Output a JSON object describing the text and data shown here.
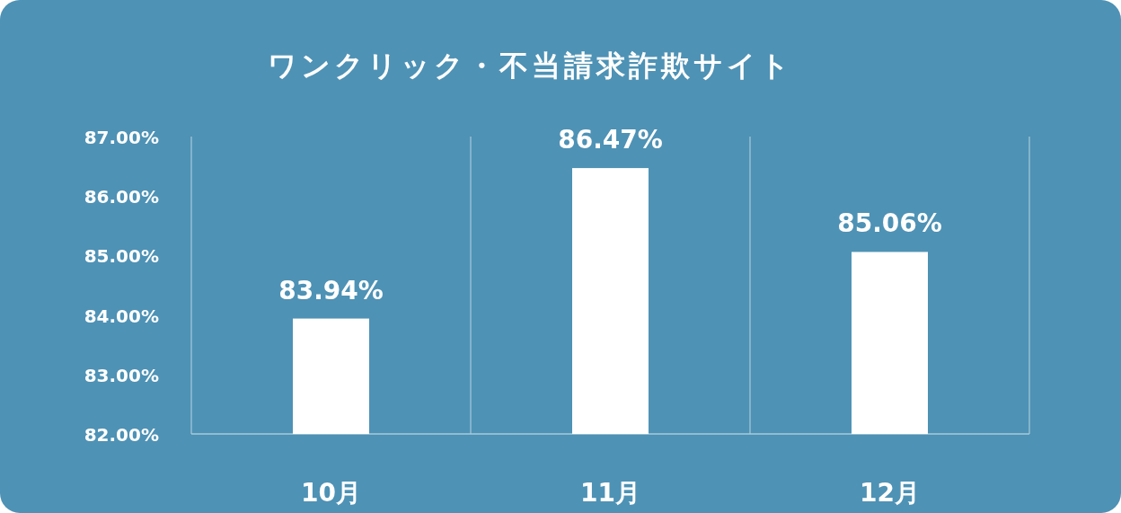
{
  "chart_data": {
    "type": "bar",
    "title": "ワンクリック・不当請求詐欺サイト",
    "categories": [
      "10月",
      "11月",
      "12月"
    ],
    "values": [
      83.94,
      86.47,
      85.06
    ],
    "value_labels": [
      "83.94%",
      "86.47%",
      "85.06%"
    ],
    "color": "#ffffff",
    "ylim": [
      82,
      87
    ],
    "yticks": [
      {
        "value": 82,
        "label": "82.00%"
      },
      {
        "value": 83,
        "label": "83.00%"
      },
      {
        "value": 84,
        "label": "84.00%"
      },
      {
        "value": 85,
        "label": "85.00%"
      },
      {
        "value": 86,
        "label": "86.00%"
      },
      {
        "value": 87,
        "label": "87.00%"
      }
    ],
    "grid": "x"
  }
}
